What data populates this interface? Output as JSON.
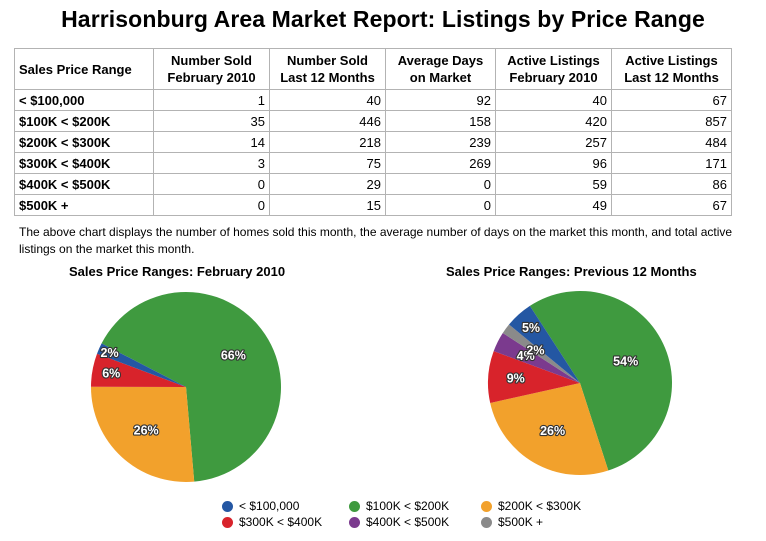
{
  "title": "Harrisonburg Area Market Report: Listings by Price Range",
  "table": {
    "headers": [
      [
        "Sales Price Range",
        ""
      ],
      [
        "Number Sold",
        "February 2010"
      ],
      [
        "Number Sold",
        "Last 12 Months"
      ],
      [
        "Average Days",
        "on Market"
      ],
      [
        "Active Listings",
        "February 2010"
      ],
      [
        "Active Listings",
        "Last 12 Months"
      ]
    ],
    "rows": [
      [
        "< $100,000",
        "1",
        "40",
        "92",
        "40",
        "67"
      ],
      [
        "$100K < $200K",
        "35",
        "446",
        "158",
        "420",
        "857"
      ],
      [
        "$200K < $300K",
        "14",
        "218",
        "239",
        "257",
        "484"
      ],
      [
        "$300K < $400K",
        "3",
        "75",
        "269",
        "96",
        "171"
      ],
      [
        "$400K < $500K",
        "0",
        "29",
        "0",
        "59",
        "86"
      ],
      [
        "$500K +",
        "0",
        "15",
        "0",
        "49",
        "67"
      ]
    ]
  },
  "caption": "The above chart displays the number of homes sold this month, the average number of days on the market this month, and total active listings on the market this month.",
  "colors": {
    "< $100,000": "#2457a3",
    "$100K < $200K": "#3f9a3f",
    "$200K < $300K": "#f2a12c",
    "$300K < $400K": "#d8232b",
    "$400K < $500K": "#7b3a8e",
    "$500K +": "#8a8a8a"
  },
  "legend": [
    "< $100,000",
    "$100K < $200K",
    "$200K < $300K",
    "$300K < $400K",
    "$400K < $500K",
    "$500K +"
  ],
  "chart_data": [
    {
      "type": "pie",
      "title": "Sales Price Ranges: February 2010",
      "categories": [
        "< $100,000",
        "$100K < $200K",
        "$200K < $300K",
        "$300K < $400K",
        "$400K < $500K",
        "$500K +"
      ],
      "values": [
        1,
        35,
        14,
        3,
        0,
        0
      ],
      "labels": [
        "2%",
        "66%",
        "26%",
        "6%",
        "",
        ""
      ]
    },
    {
      "type": "pie",
      "title": "Sales Price Ranges: Previous 12 Months",
      "categories": [
        "< $100,000",
        "$100K < $200K",
        "$200K < $300K",
        "$300K < $400K",
        "$400K < $500K",
        "$500K +"
      ],
      "values": [
        40,
        446,
        218,
        75,
        29,
        15
      ],
      "labels": [
        "5%",
        "54%",
        "26%",
        "9%",
        "4%",
        "2%"
      ]
    }
  ]
}
